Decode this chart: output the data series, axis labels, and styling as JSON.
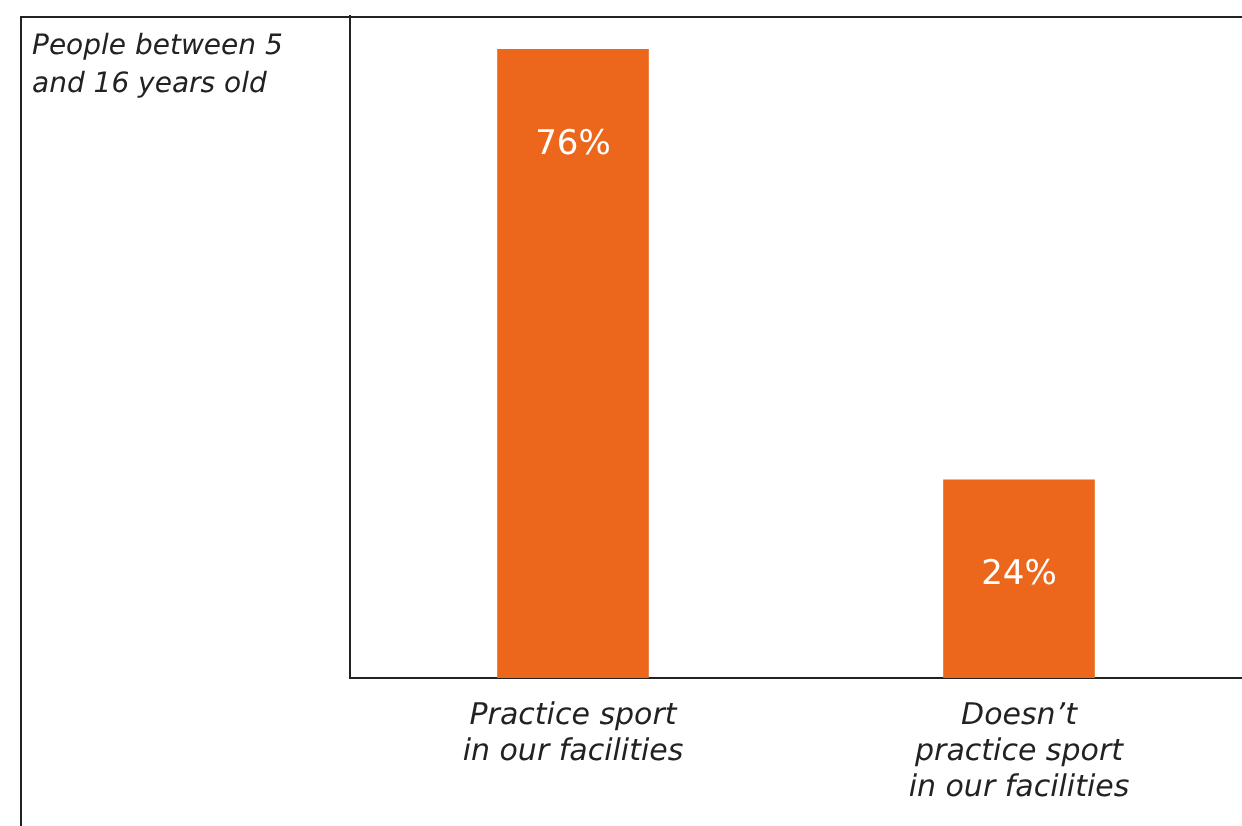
{
  "chart_data": {
    "type": "bar",
    "ylabel": "People between 5 and 16 years old",
    "categories": [
      "Practice sport in our facilities",
      "Doesn’t practice sport in our facilities"
    ],
    "values": [
      76,
      24
    ],
    "value_labels": [
      "76%",
      "24%"
    ],
    "color": "#ec661c",
    "grid": false,
    "legend": false
  }
}
